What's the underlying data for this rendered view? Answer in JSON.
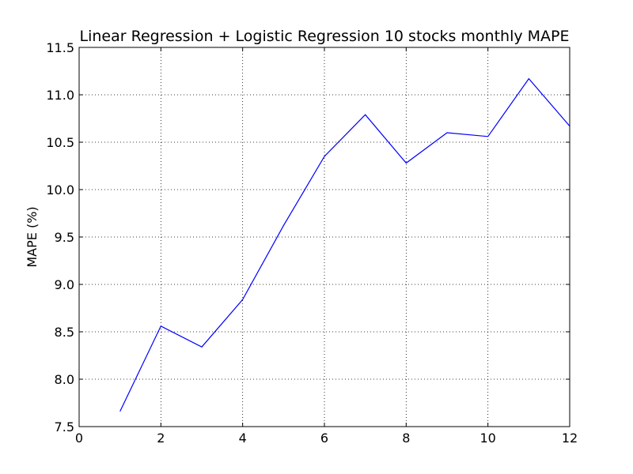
{
  "chart_data": {
    "type": "line",
    "title": "Linear Regression + Logistic Regression 10 stocks monthly MAPE",
    "xlabel": "",
    "ylabel": "MAPE (%)",
    "xlim": [
      0,
      12
    ],
    "ylim": [
      7.5,
      11.5
    ],
    "xticks": [
      "0",
      "2",
      "4",
      "6",
      "8",
      "10",
      "12"
    ],
    "yticks": [
      "7.5",
      "8.0",
      "8.5",
      "9.0",
      "9.5",
      "10.0",
      "10.5",
      "11.0",
      "11.5"
    ],
    "grid": true,
    "series": [
      {
        "color": "#0000ff",
        "x": [
          1,
          2,
          3,
          4,
          5,
          6,
          7,
          8,
          9,
          10,
          11,
          12
        ],
        "y": [
          7.66,
          8.56,
          8.34,
          8.84,
          9.62,
          10.35,
          10.79,
          10.28,
          10.6,
          10.56,
          11.17,
          10.67
        ]
      }
    ]
  }
}
